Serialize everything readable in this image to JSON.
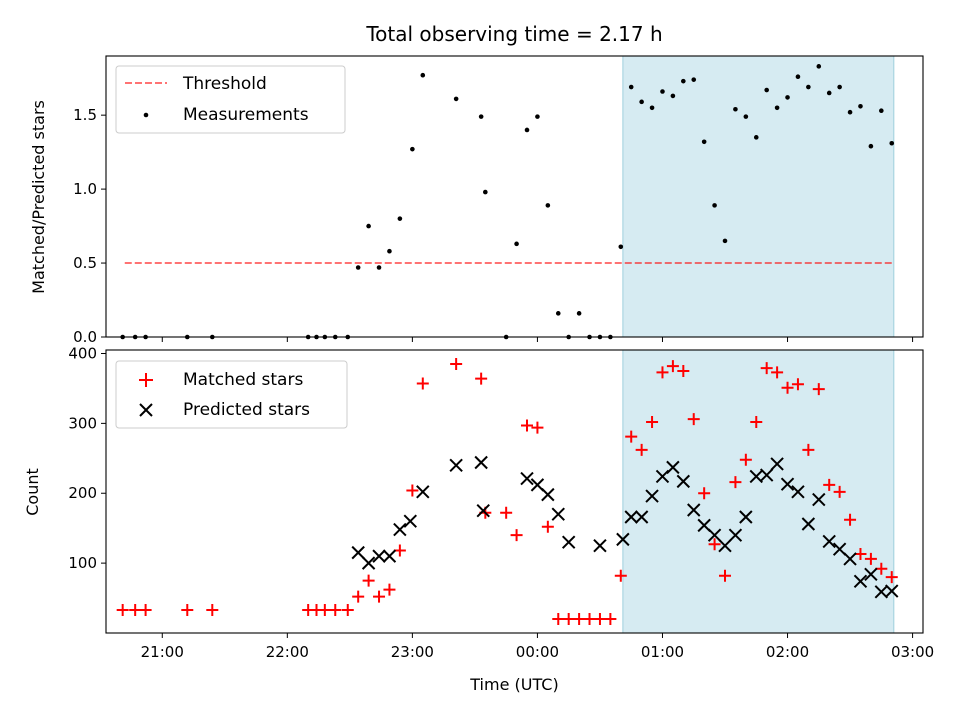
{
  "chart_data": [
    {
      "id": "ratio",
      "type": "scatter",
      "title": "Total observing time = 2.17 h",
      "xlabel": "",
      "ylabel": "Matched/Predicted stars",
      "xlim": [
        "2021-01-01T20:33",
        "2021-01-02T03:05"
      ],
      "ylim": [
        0,
        1.9
      ],
      "yticks": [
        0.0,
        0.5,
        1.0,
        1.5
      ],
      "ytick_labels": [
        "0.0",
        "0.5",
        "1.0",
        "1.5"
      ],
      "grid": false,
      "legend": "top-left",
      "shaded_region": {
        "x": [
          "2021-01-02T00:41",
          "2021-01-02T02:51"
        ],
        "color": "#add8e6"
      },
      "series": [
        {
          "name": "Threshold",
          "kind": "dashed-line",
          "color": "#ff0000",
          "x": [
            "2021-01-01T20:42",
            "2021-01-02T02:50"
          ],
          "y": [
            0.5,
            0.5
          ]
        },
        {
          "name": "Measurements",
          "kind": "points",
          "color": "#000000",
          "x": [
            "2021-01-01T20:41",
            "2021-01-01T20:47",
            "2021-01-01T20:52",
            "2021-01-01T21:12",
            "2021-01-01T21:24",
            "2021-01-01T22:10",
            "2021-01-01T22:14",
            "2021-01-01T22:18",
            "2021-01-01T22:23",
            "2021-01-01T22:29",
            "2021-01-01T22:34",
            "2021-01-01T22:39",
            "2021-01-01T22:44",
            "2021-01-01T22:49",
            "2021-01-01T22:54",
            "2021-01-01T23:00",
            "2021-01-01T23:05",
            "2021-01-01T23:21",
            "2021-01-01T23:33",
            "2021-01-01T23:35",
            "2021-01-01T23:45",
            "2021-01-01T23:50",
            "2021-01-01T23:55",
            "2021-01-02T00:00",
            "2021-01-02T00:05",
            "2021-01-02T00:10",
            "2021-01-02T00:15",
            "2021-01-02T00:20",
            "2021-01-02T00:25",
            "2021-01-02T00:30",
            "2021-01-02T00:35",
            "2021-01-02T00:40",
            "2021-01-02T00:45",
            "2021-01-02T00:50",
            "2021-01-02T00:55",
            "2021-01-02T01:00",
            "2021-01-02T01:05",
            "2021-01-02T01:10",
            "2021-01-02T01:15",
            "2021-01-02T01:20",
            "2021-01-02T01:25",
            "2021-01-02T01:30",
            "2021-01-02T01:35",
            "2021-01-02T01:40",
            "2021-01-02T01:45",
            "2021-01-02T01:50",
            "2021-01-02T01:55",
            "2021-01-02T02:00",
            "2021-01-02T02:05",
            "2021-01-02T02:10",
            "2021-01-02T02:15",
            "2021-01-02T02:20",
            "2021-01-02T02:25",
            "2021-01-02T02:30",
            "2021-01-02T02:35",
            "2021-01-02T02:40",
            "2021-01-02T02:45",
            "2021-01-02T02:50"
          ],
          "y": [
            0.0,
            0.0,
            0.0,
            0.0,
            0.0,
            0.0,
            0.0,
            0.0,
            0.0,
            0.0,
            0.47,
            0.75,
            0.47,
            0.58,
            0.8,
            1.27,
            1.77,
            1.61,
            1.49,
            0.98,
            0.0,
            0.63,
            1.4,
            1.49,
            0.89,
            0.16,
            0.0,
            0.16,
            0.0,
            0.0,
            0.0,
            0.61,
            1.69,
            1.59,
            1.55,
            1.66,
            1.63,
            1.73,
            1.74,
            1.32,
            0.89,
            0.65,
            1.54,
            1.49,
            1.35,
            1.67,
            1.55,
            1.62,
            1.76,
            1.69,
            1.83,
            1.65,
            1.69,
            1.52,
            1.56,
            1.29,
            1.53,
            1.31
          ]
        }
      ]
    },
    {
      "id": "counts",
      "type": "scatter",
      "title": "",
      "xlabel": "Time (UTC)",
      "ylabel": "Count",
      "xlim": [
        "2021-01-01T20:33",
        "2021-01-02T03:05"
      ],
      "ylim": [
        0,
        405
      ],
      "yticks": [
        100,
        200,
        300,
        400
      ],
      "ytick_labels": [
        "100",
        "200",
        "300",
        "400"
      ],
      "xticks": [
        "2021-01-01T21:00",
        "2021-01-01T22:00",
        "2021-01-01T23:00",
        "2021-01-02T00:00",
        "2021-01-02T01:00",
        "2021-01-02T02:00",
        "2021-01-02T03:00"
      ],
      "xtick_labels": [
        "21:00",
        "22:00",
        "23:00",
        "00:00",
        "01:00",
        "02:00",
        "03:00"
      ],
      "grid": false,
      "legend": "top-left",
      "shaded_region": {
        "x": [
          "2021-01-02T00:41",
          "2021-01-02T02:51"
        ],
        "color": "#add8e6"
      },
      "series": [
        {
          "name": "Matched stars",
          "kind": "plus",
          "color": "#ff0000",
          "x": [
            "2021-01-01T20:41",
            "2021-01-01T20:47",
            "2021-01-01T20:52",
            "2021-01-01T21:12",
            "2021-01-01T21:24",
            "2021-01-01T22:10",
            "2021-01-01T22:14",
            "2021-01-01T22:18",
            "2021-01-01T22:23",
            "2021-01-01T22:29",
            "2021-01-01T22:34",
            "2021-01-01T22:39",
            "2021-01-01T22:44",
            "2021-01-01T22:49",
            "2021-01-01T22:54",
            "2021-01-01T23:00",
            "2021-01-01T23:05",
            "2021-01-01T23:21",
            "2021-01-01T23:33",
            "2021-01-01T23:35",
            "2021-01-01T23:45",
            "2021-01-01T23:50",
            "2021-01-01T23:55",
            "2021-01-02T00:00",
            "2021-01-02T00:05",
            "2021-01-02T00:10",
            "2021-01-02T00:15",
            "2021-01-02T00:20",
            "2021-01-02T00:25",
            "2021-01-02T00:30",
            "2021-01-02T00:35",
            "2021-01-02T00:40",
            "2021-01-02T00:45",
            "2021-01-02T00:50",
            "2021-01-02T00:55",
            "2021-01-02T01:00",
            "2021-01-02T01:05",
            "2021-01-02T01:10",
            "2021-01-02T01:15",
            "2021-01-02T01:20",
            "2021-01-02T01:25",
            "2021-01-02T01:30",
            "2021-01-02T01:35",
            "2021-01-02T01:40",
            "2021-01-02T01:45",
            "2021-01-02T01:50",
            "2021-01-02T01:55",
            "2021-01-02T02:00",
            "2021-01-02T02:05",
            "2021-01-02T02:10",
            "2021-01-02T02:15",
            "2021-01-02T02:20",
            "2021-01-02T02:25",
            "2021-01-02T02:30",
            "2021-01-02T02:35",
            "2021-01-02T02:40",
            "2021-01-02T02:45",
            "2021-01-02T02:50"
          ],
          "y": [
            33,
            33,
            33,
            33,
            33,
            33,
            33,
            33,
            33,
            33,
            52,
            75,
            52,
            62,
            118,
            204,
            357,
            385,
            364,
            172,
            172,
            140,
            297,
            294,
            152,
            20,
            20,
            20,
            20,
            20,
            20,
            82,
            281,
            262,
            302,
            373,
            382,
            375,
            306,
            200,
            127,
            82,
            216,
            248,
            302,
            379,
            373,
            351,
            356,
            262,
            349,
            212,
            202,
            162,
            113,
            106,
            92,
            80
          ]
        },
        {
          "name": "Predicted stars",
          "kind": "cross",
          "color": "#000000",
          "x": [
            "2021-01-01T22:34",
            "2021-01-01T22:39",
            "2021-01-01T22:44",
            "2021-01-01T22:49",
            "2021-01-01T22:54",
            "2021-01-01T22:59",
            "2021-01-01T23:05",
            "2021-01-01T23:21",
            "2021-01-01T23:33",
            "2021-01-01T23:34",
            "2021-01-01T23:55",
            "2021-01-02T00:00",
            "2021-01-02T00:05",
            "2021-01-02T00:10",
            "2021-01-02T00:15",
            "2021-01-02T00:30",
            "2021-01-02T00:41",
            "2021-01-02T00:45",
            "2021-01-02T00:50",
            "2021-01-02T00:55",
            "2021-01-02T01:00",
            "2021-01-02T01:05",
            "2021-01-02T01:10",
            "2021-01-02T01:15",
            "2021-01-02T01:20",
            "2021-01-02T01:25",
            "2021-01-02T01:30",
            "2021-01-02T01:35",
            "2021-01-02T01:40",
            "2021-01-02T01:45",
            "2021-01-02T01:50",
            "2021-01-02T01:55",
            "2021-01-02T02:00",
            "2021-01-02T02:05",
            "2021-01-02T02:10",
            "2021-01-02T02:15",
            "2021-01-02T02:20",
            "2021-01-02T02:25",
            "2021-01-02T02:30",
            "2021-01-02T02:35",
            "2021-01-02T02:40",
            "2021-01-02T02:45",
            "2021-01-02T02:50"
          ],
          "y": [
            115,
            100,
            110,
            110,
            148,
            160,
            202,
            240,
            244,
            175,
            221,
            212,
            198,
            170,
            130,
            125,
            134,
            166,
            166,
            196,
            224,
            237,
            217,
            176,
            154,
            140,
            125,
            140,
            166,
            224,
            226,
            242,
            213,
            202,
            156,
            191,
            131,
            120,
            106,
            74,
            84,
            59,
            60
          ]
        }
      ]
    }
  ]
}
